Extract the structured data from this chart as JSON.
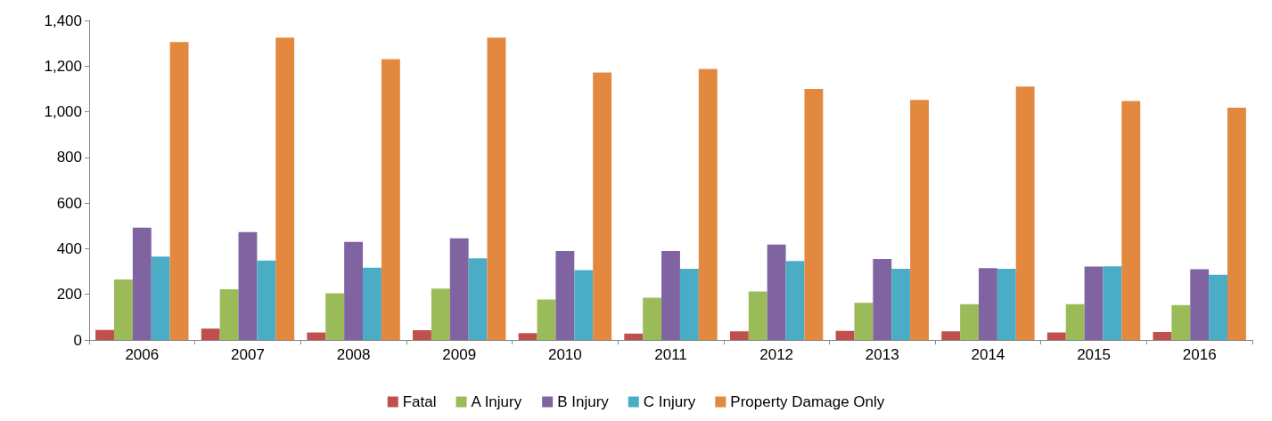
{
  "chart_data": {
    "type": "bar",
    "categories": [
      "2006",
      "2007",
      "2008",
      "2009",
      "2010",
      "2011",
      "2012",
      "2013",
      "2014",
      "2015",
      "2016"
    ],
    "series": [
      {
        "name": "Fatal",
        "color": "#c0504d",
        "values": [
          44,
          50,
          33,
          43,
          30,
          28,
          38,
          40,
          38,
          33,
          35
        ]
      },
      {
        "name": "A Injury",
        "color": "#9bbb59",
        "values": [
          265,
          222,
          205,
          225,
          177,
          185,
          213,
          163,
          157,
          157,
          153
        ]
      },
      {
        "name": "B Injury",
        "color": "#8064a2",
        "values": [
          492,
          473,
          430,
          446,
          390,
          390,
          418,
          355,
          315,
          322,
          310
        ]
      },
      {
        "name": "C Injury",
        "color": "#4bacc6",
        "values": [
          366,
          348,
          317,
          358,
          306,
          312,
          346,
          312,
          312,
          323,
          286
        ]
      },
      {
        "name": "Property Damage Only",
        "color": "#e2883f",
        "values": [
          1305,
          1325,
          1230,
          1325,
          1172,
          1187,
          1100,
          1052,
          1110,
          1047,
          1018
        ]
      }
    ],
    "ylim": [
      0,
      1400
    ],
    "yticks": [
      0,
      200,
      400,
      600,
      800,
      {
        "value": 1000,
        "label": "1,000"
      },
      {
        "value": 1200,
        "label": "1,200"
      },
      {
        "value": 1400,
        "label": "1,400"
      }
    ],
    "grid": false,
    "legend": "bottom"
  }
}
